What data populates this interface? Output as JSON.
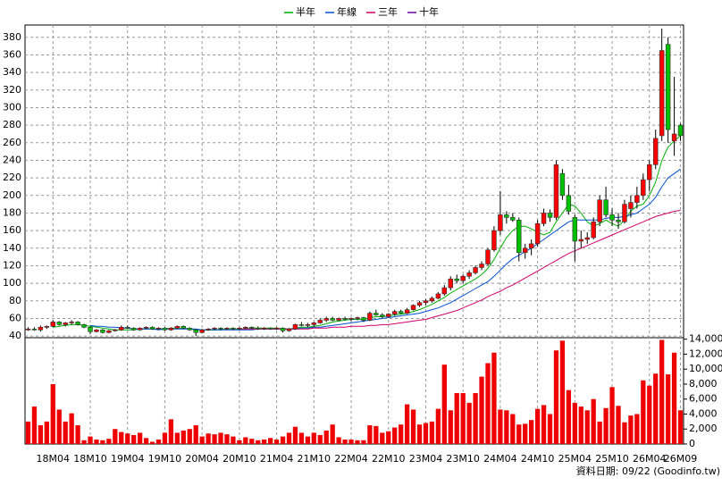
{
  "chart_data": {
    "type": "candlestick",
    "legend": [
      {
        "name": "半年",
        "color": "#00b000"
      },
      {
        "name": "年線",
        "color": "#0050d0"
      },
      {
        "name": "三年",
        "color": "#d0006a"
      },
      {
        "name": "十年",
        "color": "#6a00a0"
      }
    ],
    "categories": [
      null,
      null,
      null,
      null,
      "18M04",
      null,
      null,
      null,
      null,
      null,
      "18M10",
      null,
      null,
      null,
      null,
      null,
      "19M04",
      null,
      null,
      null,
      null,
      null,
      "19M10",
      null,
      null,
      null,
      null,
      null,
      "20M04",
      null,
      null,
      null,
      null,
      null,
      "20M10",
      null,
      null,
      null,
      null,
      null,
      "21M04",
      null,
      null,
      null,
      null,
      null,
      "21M10",
      null,
      null,
      null,
      null,
      null,
      "22M04",
      null,
      null,
      null,
      null,
      null,
      "22M10",
      null,
      null,
      null,
      null,
      null,
      "23M04",
      null,
      null,
      null,
      null,
      null,
      "23M10",
      null,
      null,
      null,
      null,
      null,
      "24M04",
      null,
      null,
      null,
      null,
      null,
      "24M10",
      null,
      null,
      null,
      null,
      null,
      "25M04",
      null,
      null,
      null,
      null,
      null,
      "25M10",
      null,
      null,
      null,
      null,
      null,
      "26M04",
      null,
      null,
      null,
      null,
      "26M09"
    ],
    "open": [
      48,
      48,
      47,
      50,
      51,
      56,
      53,
      55,
      56,
      53,
      50,
      45,
      47,
      44,
      46,
      47,
      50,
      49,
      47,
      49,
      50,
      48,
      49,
      47,
      49,
      51,
      49,
      47,
      44,
      47,
      48,
      49,
      48,
      49,
      48,
      49,
      50,
      49,
      48,
      49,
      48,
      49,
      46,
      48,
      53,
      52,
      53,
      55,
      58,
      60,
      58,
      60,
      59,
      60,
      61,
      58,
      66,
      64,
      62,
      65,
      68,
      66,
      70,
      75,
      78,
      80,
      83,
      88,
      95,
      105,
      103,
      108,
      112,
      118,
      122,
      138,
      160,
      178,
      175,
      172,
      135,
      140,
      145,
      168,
      180,
      175,
      225,
      200,
      175,
      148,
      150,
      152,
      170,
      195,
      178,
      172,
      170,
      185,
      192,
      200,
      218,
      235,
      268,
      372,
      262,
      280
    ],
    "high": [
      50,
      50,
      52,
      52,
      58,
      57,
      56,
      58,
      57,
      54,
      51,
      48,
      48,
      47,
      48,
      52,
      52,
      50,
      50,
      51,
      51,
      50,
      50,
      50,
      52,
      52,
      50,
      48,
      48,
      49,
      50,
      50,
      50,
      50,
      50,
      51,
      51,
      51,
      50,
      50,
      50,
      50,
      49,
      54,
      56,
      55,
      56,
      60,
      62,
      62,
      61,
      62,
      61,
      62,
      62,
      68,
      70,
      66,
      66,
      70,
      70,
      72,
      76,
      80,
      82,
      85,
      90,
      98,
      108,
      110,
      110,
      115,
      120,
      125,
      140,
      165,
      205,
      182,
      180,
      175,
      145,
      150,
      172,
      185,
      184,
      240,
      230,
      212,
      178,
      160,
      158,
      175,
      200,
      210,
      185,
      180,
      195,
      200,
      210,
      225,
      240,
      275,
      390,
      380,
      335,
      282
    ],
    "low": [
      46,
      46,
      45,
      48,
      50,
      52,
      51,
      53,
      52,
      49,
      42,
      44,
      43,
      43,
      45,
      46,
      48,
      46,
      46,
      48,
      47,
      47,
      46,
      46,
      48,
      48,
      46,
      40,
      43,
      46,
      47,
      47,
      47,
      47,
      47,
      48,
      48,
      47,
      47,
      47,
      47,
      44,
      45,
      47,
      51,
      50,
      51,
      54,
      56,
      57,
      57,
      58,
      57,
      58,
      56,
      57,
      63,
      60,
      61,
      63,
      65,
      65,
      69,
      73,
      75,
      78,
      82,
      86,
      92,
      100,
      100,
      105,
      110,
      115,
      120,
      136,
      155,
      168,
      170,
      125,
      128,
      132,
      142,
      165,
      170,
      172,
      195,
      178,
      125,
      140,
      145,
      150,
      165,
      175,
      165,
      162,
      168,
      175,
      185,
      195,
      205,
      230,
      262,
      260,
      245,
      262
    ],
    "close": [
      48,
      47,
      50,
      51,
      56,
      53,
      55,
      56,
      53,
      50,
      45,
      47,
      44,
      46,
      47,
      50,
      49,
      47,
      49,
      50,
      48,
      49,
      47,
      49,
      51,
      49,
      47,
      44,
      47,
      48,
      49,
      48,
      49,
      48,
      49,
      50,
      49,
      48,
      49,
      48,
      49,
      46,
      48,
      53,
      52,
      53,
      55,
      58,
      60,
      58,
      60,
      59,
      60,
      61,
      58,
      66,
      64,
      62,
      65,
      68,
      66,
      70,
      75,
      78,
      80,
      83,
      88,
      95,
      105,
      103,
      108,
      112,
      118,
      122,
      138,
      160,
      178,
      175,
      172,
      135,
      140,
      145,
      168,
      180,
      175,
      235,
      200,
      182,
      148,
      150,
      152,
      170,
      195,
      178,
      172,
      170,
      190,
      192,
      200,
      218,
      235,
      265,
      365,
      275,
      270,
      268
    ],
    "up_color": "#ff0000",
    "down_color": "#00c000",
    "series": [
      {
        "name": "半年",
        "color": "#00b000",
        "values": [
          null,
          null,
          null,
          null,
          50,
          51,
          52,
          53,
          53,
          52,
          51,
          50,
          49,
          48,
          47,
          47,
          47,
          47,
          48,
          48,
          48,
          48,
          48,
          49,
          49,
          49,
          48,
          47,
          47,
          47,
          47,
          47,
          48,
          48,
          48,
          48,
          49,
          49,
          49,
          49,
          49,
          48,
          48,
          49,
          50,
          50,
          51,
          52,
          54,
          56,
          57,
          58,
          59,
          59,
          59,
          61,
          62,
          62,
          63,
          64,
          65,
          66,
          68,
          70,
          73,
          76,
          80,
          84,
          89,
          93,
          97,
          101,
          105,
          110,
          117,
          127,
          140,
          152,
          160,
          165,
          165,
          162,
          158,
          155,
          158,
          170,
          180,
          190,
          188,
          180,
          170,
          165,
          168,
          172,
          168,
          165,
          172,
          182,
          188,
          190,
          200,
          215,
          240,
          255,
          262,
          268
        ]
      },
      {
        "name": "年線",
        "color": "#0050d0",
        "values": [
          null,
          null,
          null,
          null,
          null,
          null,
          null,
          null,
          null,
          null,
          52,
          51,
          51,
          50,
          50,
          49,
          49,
          48,
          48,
          48,
          48,
          47,
          48,
          48,
          48,
          48,
          48,
          48,
          47,
          47,
          47,
          47,
          47,
          47,
          47,
          47,
          47,
          48,
          48,
          48,
          48,
          48,
          48,
          48,
          49,
          49,
          50,
          50,
          51,
          52,
          53,
          54,
          55,
          56,
          57,
          58,
          59,
          60,
          61,
          62,
          63,
          64,
          65,
          66,
          68,
          70,
          72,
          75,
          78,
          82,
          86,
          90,
          94,
          98,
          102,
          108,
          115,
          122,
          128,
          132,
          136,
          140,
          145,
          150,
          155,
          160,
          165,
          170,
          172,
          172,
          172,
          172,
          172,
          174,
          175,
          175,
          176,
          178,
          180,
          185,
          190,
          198,
          210,
          220,
          225,
          230
        ]
      },
      {
        "name": "三年",
        "color": "#d0006a",
        "values": [
          null,
          null,
          null,
          null,
          null,
          null,
          null,
          null,
          null,
          null,
          null,
          null,
          null,
          null,
          null,
          null,
          null,
          null,
          null,
          null,
          null,
          null,
          null,
          null,
          null,
          null,
          null,
          null,
          null,
          null,
          null,
          null,
          null,
          null,
          48,
          48,
          48,
          48,
          48,
          48,
          48,
          48,
          48,
          48,
          48,
          48,
          49,
          49,
          49,
          50,
          50,
          50,
          51,
          51,
          51,
          52,
          52,
          53,
          53,
          54,
          55,
          56,
          57,
          58,
          59,
          61,
          63,
          65,
          67,
          69,
          72,
          75,
          78,
          81,
          85,
          88,
          91,
          95,
          98,
          102,
          106,
          110,
          114,
          118,
          122,
          126,
          130,
          134,
          137,
          140,
          143,
          146,
          149,
          152,
          155,
          158,
          161,
          164,
          167,
          170,
          173,
          176,
          178,
          180,
          182,
          183
        ]
      },
      {
        "name": "十年",
        "color": "#6a00a0",
        "values": [
          null,
          null,
          null,
          null,
          null,
          null,
          null,
          null,
          null,
          null,
          null,
          null,
          null,
          null,
          null,
          null,
          null,
          null,
          null,
          null,
          null,
          null,
          null,
          null,
          null,
          null,
          null,
          null,
          null,
          null,
          null,
          null,
          null,
          null,
          null,
          null,
          null,
          null,
          null,
          null,
          null,
          null,
          null,
          null,
          null,
          null,
          null,
          null,
          null,
          null,
          null,
          null,
          null,
          null,
          null,
          null,
          null,
          null,
          null,
          null,
          null,
          null,
          null,
          null,
          null,
          null,
          null,
          null,
          null,
          null,
          null,
          null,
          null,
          null,
          null,
          null,
          null,
          null,
          null,
          null,
          null,
          null,
          null,
          null,
          null,
          null,
          null,
          null,
          null,
          null,
          null,
          null,
          null,
          null,
          null,
          null,
          null,
          null,
          null,
          null,
          null,
          null,
          null,
          null,
          null,
          null
        ]
      }
    ],
    "ylim": [
      31,
      394
    ],
    "yticks": [
      40,
      60,
      80,
      100,
      120,
      140,
      160,
      180,
      200,
      220,
      240,
      260,
      280,
      300,
      320,
      340,
      360,
      380
    ],
    "grid": true,
    "volume": {
      "color": "#ee0000",
      "ylim": [
        0,
        14200
      ],
      "yticks": [
        0,
        {
          "value": 2000,
          "label": "2,000"
        },
        {
          "value": 4000,
          "label": "4,000"
        },
        {
          "value": 6000,
          "label": "6,000"
        },
        {
          "value": 8000,
          "label": "8,000"
        },
        {
          "value": 10000,
          "label": "10,000"
        },
        {
          "value": 12000,
          "label": "12,000"
        },
        {
          "value": 14000,
          "label": "14,000"
        }
      ],
      "values": [
        3000,
        5000,
        2500,
        3000,
        8000,
        4600,
        3000,
        4100,
        2500,
        500,
        1000,
        600,
        500,
        700,
        2000,
        1600,
        1400,
        1200,
        1500,
        800,
        300,
        600,
        1500,
        3300,
        1500,
        1800,
        2000,
        2500,
        1000,
        1400,
        1300,
        1500,
        1300,
        1000,
        500,
        900,
        700,
        500,
        600,
        800,
        600,
        1000,
        1500,
        2300,
        1500,
        1000,
        1500,
        1200,
        1800,
        2600,
        900,
        600,
        600,
        500,
        500,
        2500,
        2400,
        1500,
        1700,
        2200,
        2600,
        5300,
        4600,
        2600,
        2800,
        3000,
        4700,
        10600,
        4500,
        6800,
        6800,
        5500,
        6800,
        9000,
        10800,
        12200,
        4600,
        4500,
        4000,
        2600,
        2700,
        3200,
        4700,
        5200,
        4000,
        12500,
        13800,
        7200,
        5500,
        5000,
        4500,
        6000,
        3000,
        4800,
        7600,
        5100,
        2900,
        3800,
        4000,
        8500,
        7800,
        9400,
        13900,
        9300,
        12200,
        4500
      ]
    },
    "note": "資料日期: 09/22 (Goodinfo.tw)"
  }
}
